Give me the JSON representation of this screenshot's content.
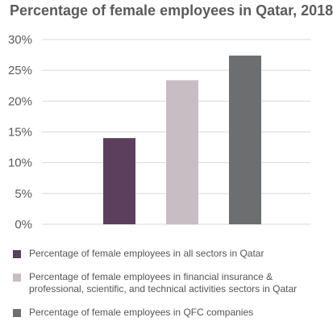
{
  "chart_data": {
    "type": "bar",
    "title": "Percentage of female employees in Qatar, 2018",
    "categories": [
      "Percentage of female employees in all sectors in Qatar",
      "Percentage of female employees in financial insurance & professional, scientific, and technical activities sectors in Qatar",
      "Percentage of female employees in QFC companies"
    ],
    "values": [
      14,
      23.4,
      27.4
    ],
    "colors": [
      "#5c3f5c",
      "#c9bdc4",
      "#6d6e70"
    ],
    "ylim": [
      0,
      30
    ],
    "yticks": [
      0,
      5,
      10,
      15,
      20,
      25,
      30
    ],
    "ytick_labels": [
      "0%",
      "5%",
      "10%",
      "15%",
      "20%",
      "25%",
      "30%"
    ],
    "grid": true,
    "legend_position": "bottom",
    "xlabel": "",
    "ylabel": ""
  },
  "legend": {
    "items": [
      {
        "label_line1": "Percentage of female employees in all sectors in Qatar",
        "label_line2": "",
        "color": "#5c3f5c"
      },
      {
        "label_line1": "Percentage of female employees in financial insurance &",
        "label_line2": "professional, scientific, and technical activities sectors in Qatar",
        "color": "#c9bdc4"
      },
      {
        "label_line1": "Percentage of female employees in QFC companies",
        "label_line2": "",
        "color": "#6d6e70"
      }
    ]
  }
}
